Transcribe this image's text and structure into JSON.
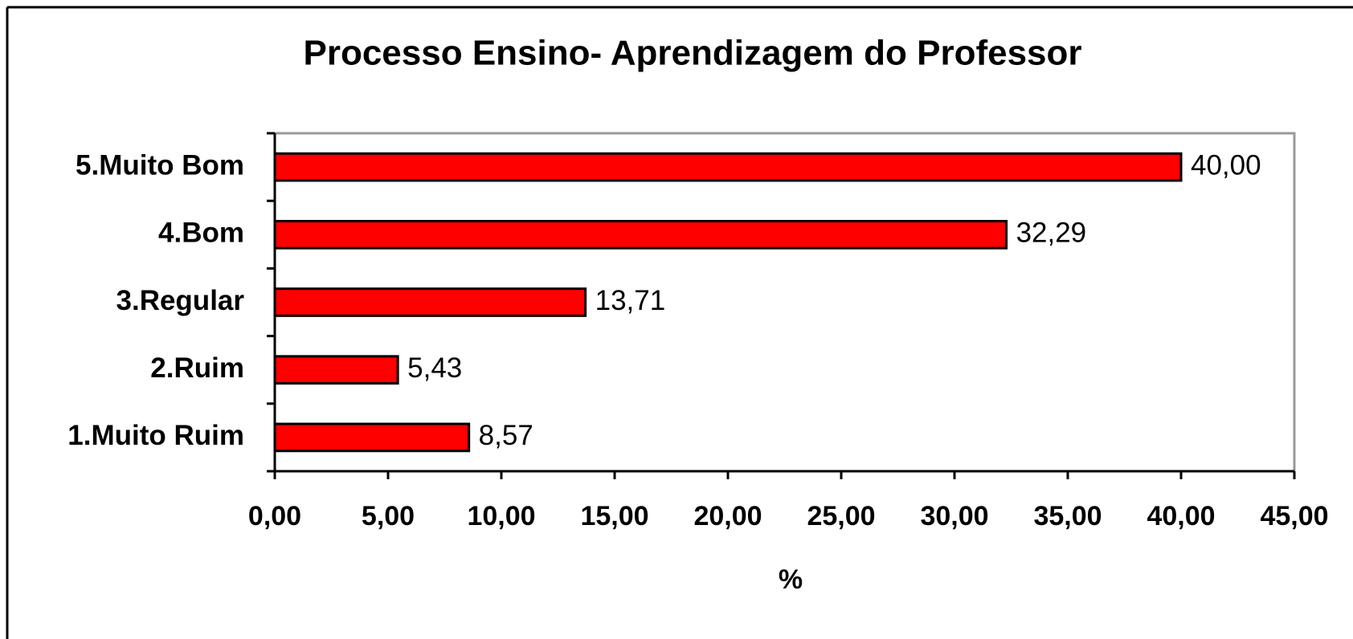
{
  "chart_data": {
    "type": "barh",
    "title": "Processo Ensino- Aprendizagem do Professor",
    "xlabel": "%",
    "categories": [
      "1.Muito Ruim",
      "2.Ruim",
      "3.Regular",
      "4.Bom",
      "5.Muito Bom"
    ],
    "values": [
      8.57,
      5.43,
      13.71,
      32.29,
      40.0
    ],
    "value_labels": [
      "8,57",
      "5,43",
      "13,71",
      "32,29",
      "40,00"
    ],
    "color": "#ff0000",
    "xlim": [
      0,
      45
    ],
    "xticks": [
      {
        "value": 0,
        "label": "0,00"
      },
      {
        "value": 5,
        "label": "5,00"
      },
      {
        "value": 10,
        "label": "10,00"
      },
      {
        "value": 15,
        "label": "15,00"
      },
      {
        "value": 20,
        "label": "20,00"
      },
      {
        "value": 25,
        "label": "25,00"
      },
      {
        "value": 30,
        "label": "30,00"
      },
      {
        "value": 35,
        "label": "35,00"
      },
      {
        "value": 40,
        "label": "40,00"
      },
      {
        "value": 45,
        "label": "45,00"
      }
    ],
    "grid": false
  }
}
